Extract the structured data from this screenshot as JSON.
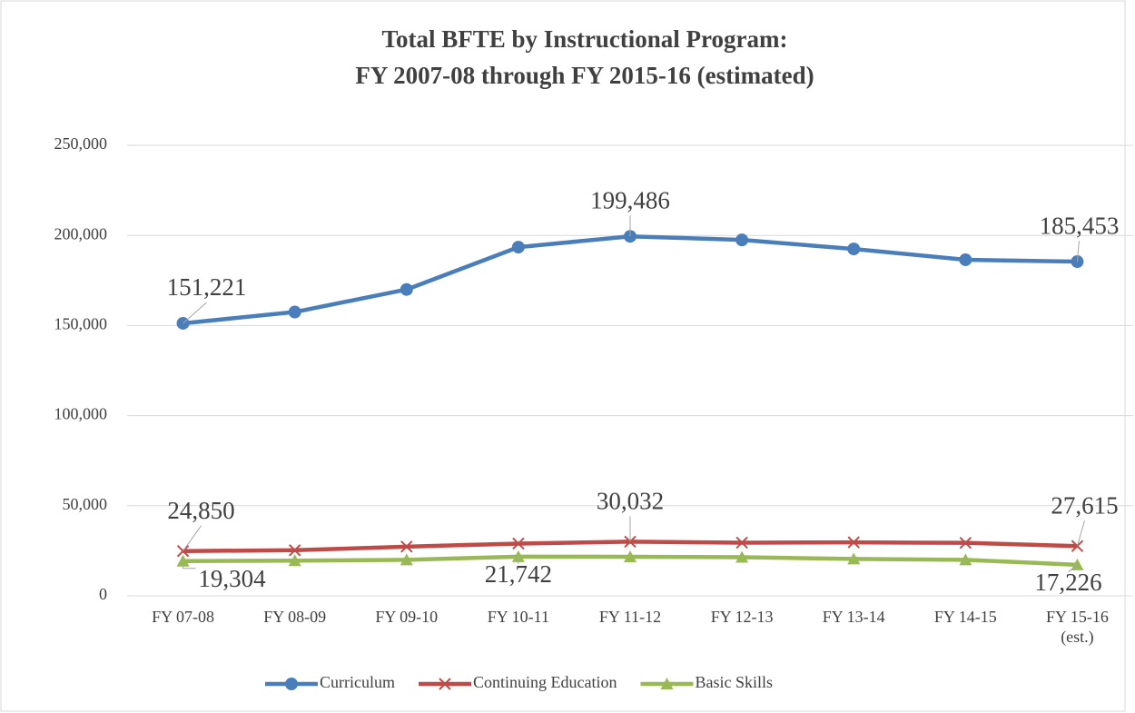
{
  "chart_data": {
    "type": "line",
    "title": "Total BFTE by Instructional Program:",
    "subtitle": "FY 2007-08 through FY 2015-16 (estimated)",
    "categories": [
      "FY 07-08",
      "FY 08-09",
      "FY 09-10",
      "FY 10-11",
      "FY 11-12",
      "FY 12-13",
      "FY 13-14",
      "FY 14-15",
      "FY 15-16 (est.)"
    ],
    "series": [
      {
        "name": "Curriculum",
        "color": "#4a7ebb",
        "marker": "circle",
        "values": [
          151221,
          157500,
          170000,
          193500,
          199486,
          197500,
          192500,
          186500,
          185453
        ],
        "value_labels": [
          "151,221",
          null,
          null,
          null,
          "199,486",
          null,
          null,
          null,
          "185,453"
        ]
      },
      {
        "name": "Continuing Education",
        "color": "#be4b48",
        "marker": "x",
        "values": [
          24850,
          25300,
          27300,
          29000,
          30032,
          29500,
          29700,
          29400,
          27615
        ],
        "value_labels": [
          "24,850",
          null,
          null,
          null,
          "30,032",
          null,
          null,
          null,
          "27,615"
        ]
      },
      {
        "name": "Basic Skills",
        "color": "#98b954",
        "marker": "triangle",
        "values": [
          19304,
          19500,
          20000,
          21742,
          21700,
          21400,
          20500,
          20000,
          17226
        ],
        "value_labels": [
          "19,304",
          null,
          null,
          "21,742",
          null,
          null,
          null,
          null,
          "17,226"
        ]
      }
    ],
    "ylim": [
      0,
      250000
    ],
    "yticks": [
      0,
      {
        "value": 50000,
        "label": "50,000"
      },
      {
        "value": 100000,
        "label": "100,000"
      },
      {
        "value": 150000,
        "label": "150,000"
      },
      {
        "value": 200000,
        "label": "200,000"
      },
      {
        "value": 250000,
        "label": "250,000"
      }
    ],
    "grid": true,
    "legend": "bottom"
  }
}
